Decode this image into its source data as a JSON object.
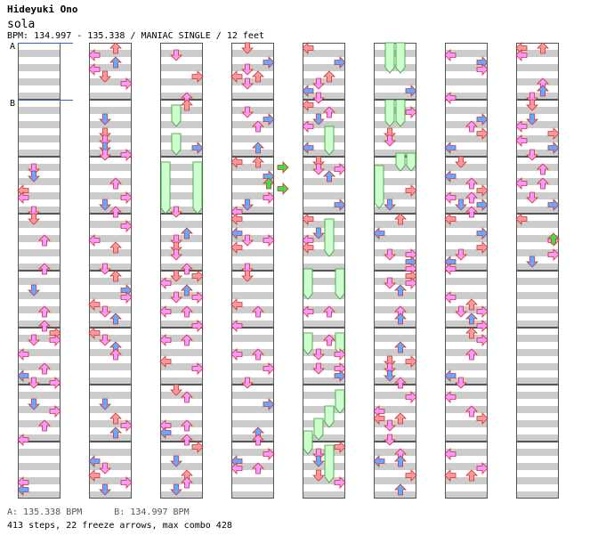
{
  "header": {
    "artist": "Hideyuki Ono",
    "title": "sola",
    "bpm_info": "BPM: 134.997 - 135.338 / MANIAC SINGLE / 12 feet"
  },
  "markers": [
    "A",
    "B"
  ],
  "legend": {
    "a": "A: 135.338 BPM",
    "b": "B: 134.997 BPM"
  },
  "stats": "413 steps, 22 freeze arrows, max combo 428",
  "colors": {
    "quarter": "#ff9999",
    "eighth": "#66aaff",
    "sixteenth": "#ff99ff",
    "freeze": "#ccffcc",
    "freeze_head": "#44dd44",
    "stripe": "#cccccc",
    "bpm_line": "#3366cc"
  },
  "icons": {
    "left": "left-arrow-icon",
    "down": "down-arrow-icon",
    "up": "up-arrow-icon",
    "right": "right-arrow-icon",
    "freeze": "freeze-arrow-icon"
  },
  "chart_data": {
    "type": "table",
    "columns_count": 8,
    "measures_per_column": 8,
    "lanes": [
      "left",
      "down",
      "up",
      "right"
    ],
    "total_steps": 413,
    "freeze_arrows": 22,
    "max_combo": 428
  }
}
